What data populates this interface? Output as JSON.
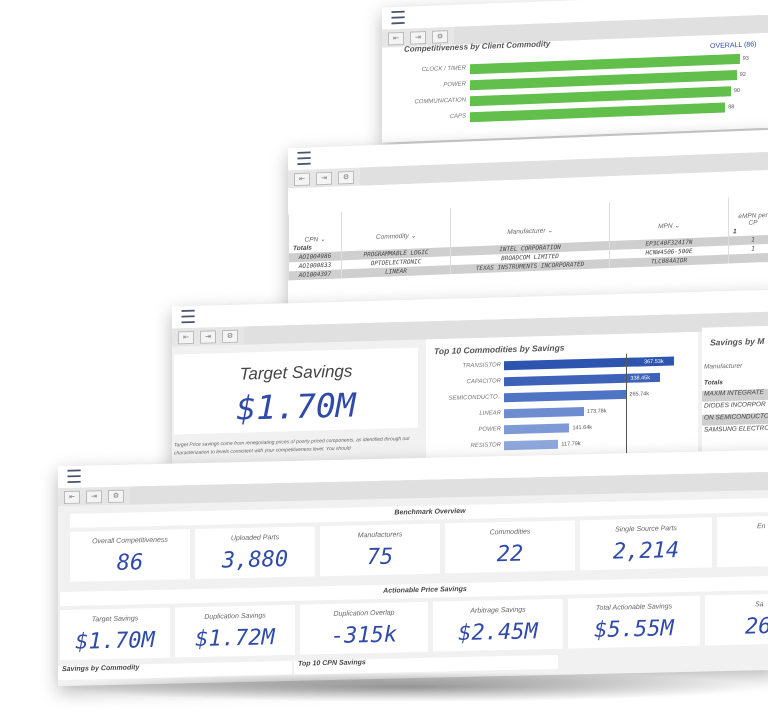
{
  "toolbar_icons": [
    "back-icon",
    "forward-icon",
    "settings-icon"
  ],
  "panel_top": {
    "title": "Competitiveness by Client Commodity",
    "overall": "OVERALL (86)",
    "bars": [
      {
        "label": "CLOCK / TIMER",
        "value": "93",
        "fraction": 0.93
      },
      {
        "label": "POWER",
        "value": "92",
        "fraction": 0.92
      },
      {
        "label": "COMMUNICATION",
        "value": "90",
        "fraction": 0.9
      },
      {
        "label": "CAPS",
        "value": "88",
        "fraction": 0.88
      }
    ]
  },
  "panel_table": {
    "headers": [
      "CPN",
      "Commodity",
      "Manufacturer",
      "MPN",
      "eMPN per CP"
    ],
    "totals_label": "Totals",
    "totals_last": "1",
    "rows": [
      {
        "cpn": "AO1004986",
        "commodity": "PROGRAMMABLE LOGIC",
        "manufacturer": "INTEL CORPORATION",
        "mpn": "EP3C40F324I7N",
        "last": "1"
      },
      {
        "cpn": "AO1000833",
        "commodity": "OPTOELECTRONIC",
        "manufacturer": "BROADCOM LIMITED",
        "mpn": "HCNW4506-500E",
        "last": "1"
      },
      {
        "cpn": "AO1004397",
        "commodity": "LINEAR",
        "manufacturer": "TEXAS INSTRUMENTS INCORPORATED",
        "mpn": "TLC084AIDR",
        "last": ""
      }
    ]
  },
  "panel_savings": {
    "target_title": "Target Savings",
    "target_value": "$1.70M",
    "note": "Target Price savings come from renegotiating prices of poorly priced components, as identified through our characterization to levels consistent with your competitiveness level. You should",
    "top10_title": "Top 10 Commodities by Savings",
    "top10": [
      {
        "label": "TRANSISTOR",
        "value": "367.53k",
        "fraction": 1.0,
        "color": "#2d55b0"
      },
      {
        "label": "CAPACITOR",
        "value": "338.45k",
        "fraction": 0.92,
        "color": "#3d62b8"
      },
      {
        "label": "SEMICONDUCTO..",
        "value": "265.74k",
        "fraction": 0.72,
        "color": "#4f74c4"
      },
      {
        "label": "LINEAR",
        "value": "173.78k",
        "fraction": 0.47,
        "color": "#6d8dd0"
      },
      {
        "label": "POWER",
        "value": "141.64k",
        "fraction": 0.385,
        "color": "#7d9ad6"
      },
      {
        "label": "RESISTOR",
        "value": "117.79k",
        "fraction": 0.32,
        "color": "#8ea8dc"
      }
    ],
    "mfr_title": "Savings by M",
    "mfr_header": "Manufacturer",
    "mfr_totals": "Totals",
    "mfr_rows": [
      "MAXIM INTEGRATE",
      "DIODES INCORPOR",
      "ON SEMICONDUCTO",
      "SAMSUNG ELECTRO"
    ]
  },
  "panel_dashboard": {
    "benchmark_header": "Benchmark Overview",
    "benchmark": [
      {
        "label": "Overall Competitiveness",
        "value": "86"
      },
      {
        "label": "Uploaded Parts",
        "value": "3,880"
      },
      {
        "label": "Manufacturers",
        "value": "75"
      },
      {
        "label": "Commodities",
        "value": "22"
      },
      {
        "label": "Single Source Parts",
        "value": "2,214"
      },
      {
        "label": "En",
        "value": ""
      }
    ],
    "actionable_header": "Actionable Price Savings",
    "actionable": [
      {
        "label": "Target Savings",
        "value": "$1.70M"
      },
      {
        "label": "Duplication Savings",
        "value": "$1.72M"
      },
      {
        "label": "Duplication Overlap",
        "value": "-315k"
      },
      {
        "label": "Arbitrage Savings",
        "value": "$2.45M"
      },
      {
        "label": "Total Actionable Savings",
        "value": "$5.55M"
      },
      {
        "label": "Sa",
        "value": "26"
      }
    ],
    "bottom_tabs": [
      "Savings by Commodity",
      "Top 10 CPN Savings"
    ]
  }
}
